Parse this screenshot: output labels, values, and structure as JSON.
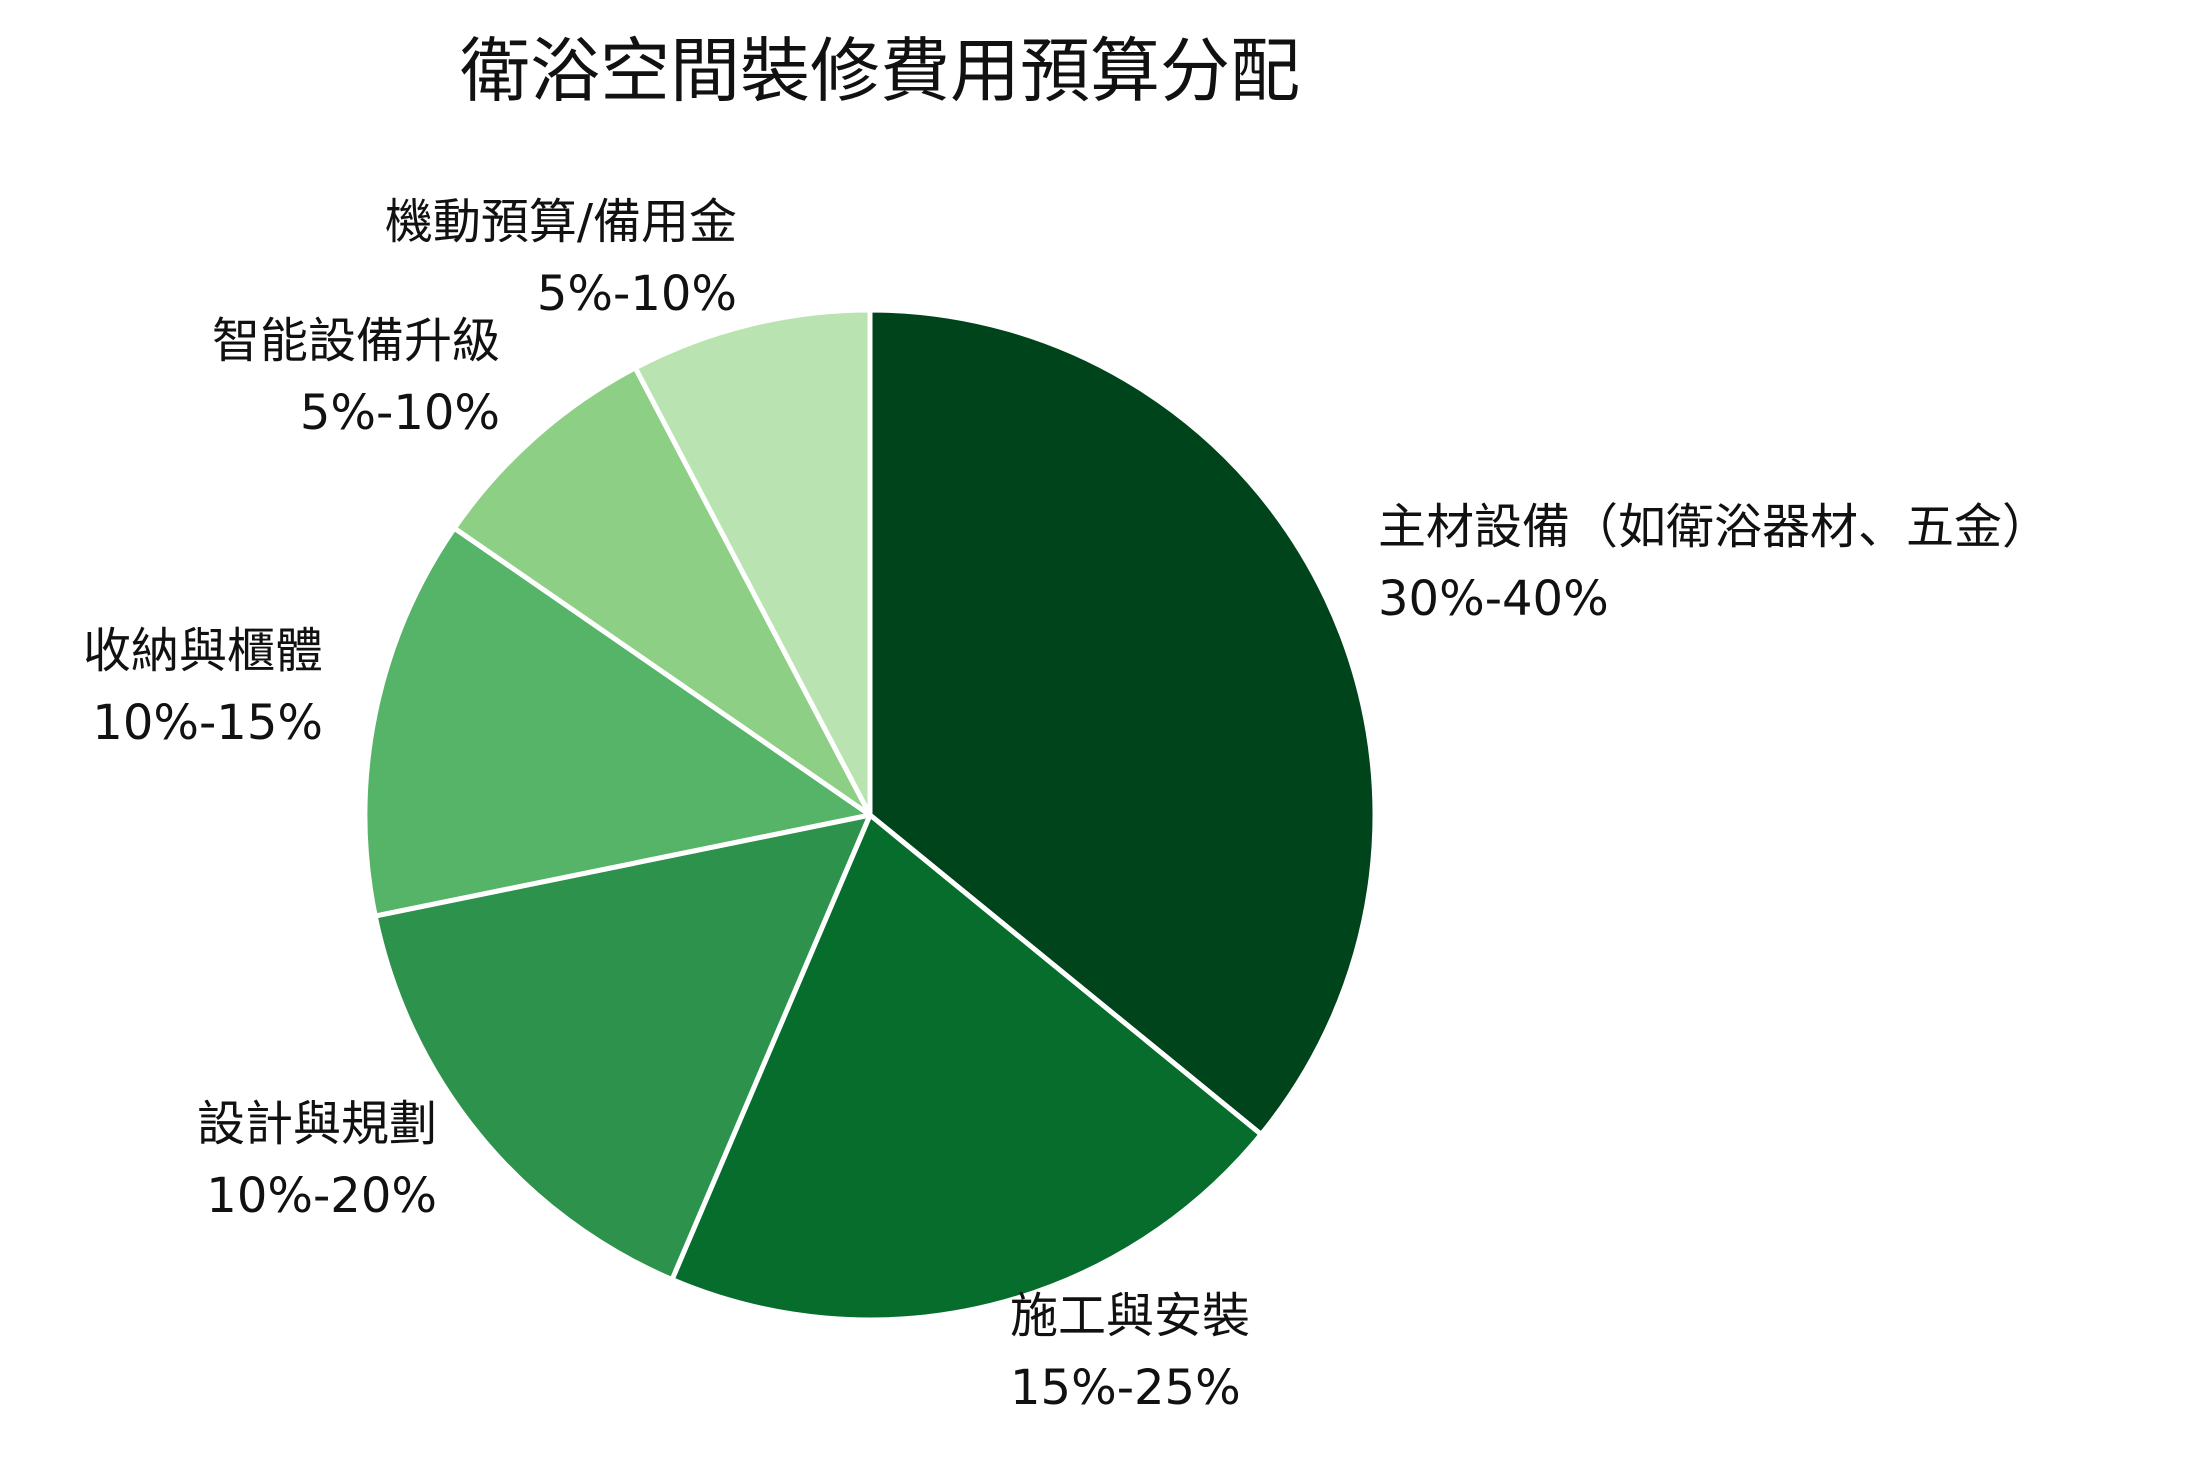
{
  "chart_data": {
    "type": "pie",
    "title": "衛浴空間裝修費用預算分配",
    "start_angle_deg": 90,
    "direction": "clockwise",
    "legend": "none",
    "slices": [
      {
        "label": "主材設備（如衛浴器材、五金）",
        "range_text": "30%-40%",
        "value": 35,
        "color": "#00441b"
      },
      {
        "label": "施工與安裝",
        "range_text": "15%-25%",
        "value": 20,
        "color": "#066d2d"
      },
      {
        "label": "設計與規劃",
        "range_text": "10%-20%",
        "value": 15,
        "color": "#2d924b"
      },
      {
        "label": "收納與櫃體",
        "range_text": "10%-15%",
        "value": 12.5,
        "color": "#55b468"
      },
      {
        "label": "智能設備升級",
        "range_text": "5%-10%",
        "value": 7.5,
        "color": "#8ecf86"
      },
      {
        "label": "機動預算/備用金",
        "range_text": "5%-10%",
        "value": 7.5,
        "color": "#b9e3b1"
      }
    ]
  }
}
